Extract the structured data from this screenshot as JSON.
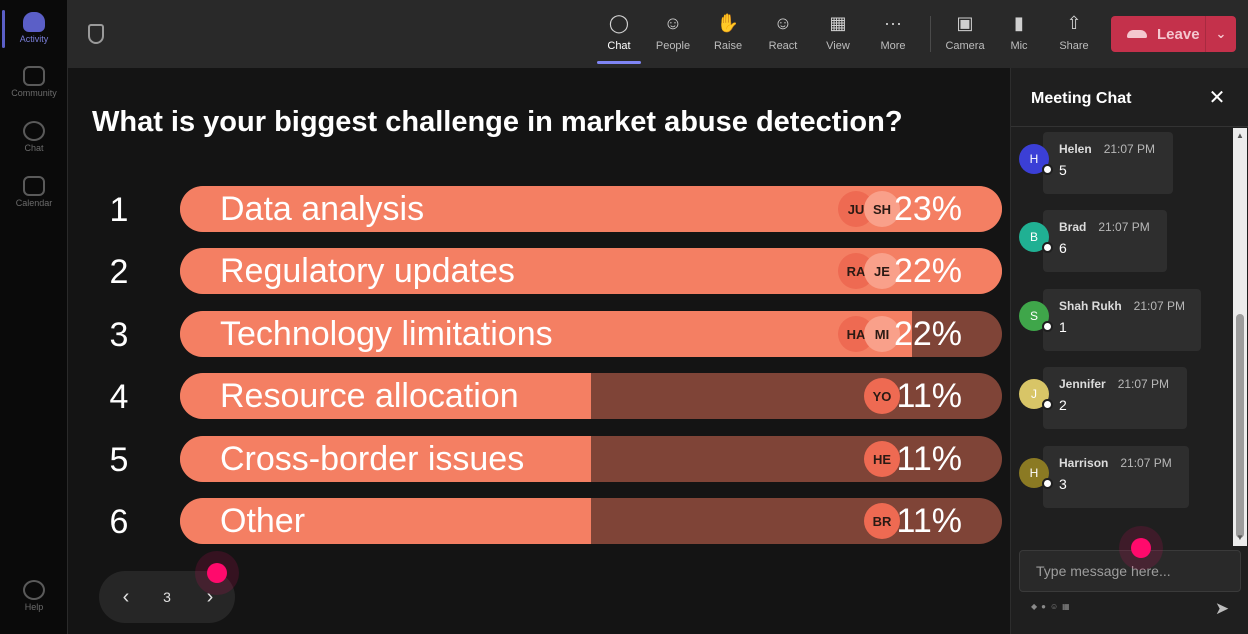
{
  "rail": {
    "items": [
      {
        "label": "Activity"
      },
      {
        "label": "Community"
      },
      {
        "label": "Chat"
      },
      {
        "label": "Calendar"
      },
      {
        "label": "Help"
      }
    ]
  },
  "toolbar": {
    "buttons": [
      {
        "label": "Chat",
        "icon": "chat-icon"
      },
      {
        "label": "People",
        "icon": "people-icon"
      },
      {
        "label": "Raise",
        "icon": "raise-hand-icon"
      },
      {
        "label": "React",
        "icon": "react-icon"
      },
      {
        "label": "View",
        "icon": "view-icon"
      },
      {
        "label": "More",
        "icon": "more-icon"
      },
      {
        "label": "Camera",
        "icon": "camera-off-icon"
      },
      {
        "label": "Mic",
        "icon": "mic-icon"
      },
      {
        "label": "Share",
        "icon": "share-icon"
      }
    ],
    "leave_label": "Leave"
  },
  "poll": {
    "question": "What is your biggest challenge in market abuse detection?",
    "options": [
      {
        "num": "1",
        "label": "Data analysis",
        "pct": "23%",
        "fill": 1.0,
        "avatars": [
          "JU",
          "SH"
        ]
      },
      {
        "num": "2",
        "label": "Regulatory updates",
        "pct": "22%",
        "fill": 1.0,
        "avatars": [
          "RA",
          "JE"
        ]
      },
      {
        "num": "3",
        "label": "Technology limitations",
        "pct": "22%",
        "fill": 0.89,
        "avatars": [
          "HA",
          "MI"
        ]
      },
      {
        "num": "4",
        "label": "Resource allocation",
        "pct": "11%",
        "fill": 0.5,
        "avatars": [
          "YO"
        ]
      },
      {
        "num": "5",
        "label": "Cross-border issues",
        "pct": "11%",
        "fill": 0.5,
        "avatars": [
          "HE"
        ]
      },
      {
        "num": "6",
        "label": "Other",
        "pct": "11%",
        "fill": 0.5,
        "avatars": [
          "BR"
        ]
      }
    ],
    "page": "3"
  },
  "chat": {
    "title": "Meeting Chat",
    "messages": [
      {
        "initial": "H",
        "name": "Helen",
        "time": "21:07 PM",
        "text": "5",
        "color": "#3b3fd6"
      },
      {
        "initial": "B",
        "name": "Brad",
        "time": "21:07 PM",
        "text": "6",
        "color": "#20b093"
      },
      {
        "initial": "S",
        "name": "Shah Rukh",
        "time": "21:07 PM",
        "text": "1",
        "color": "#3fa64a"
      },
      {
        "initial": "J",
        "name": "Jennifer",
        "time": "21:07 PM",
        "text": "2",
        "color": "#d8c567"
      },
      {
        "initial": "H",
        "name": "Harrison",
        "time": "21:07 PM",
        "text": "3",
        "color": "#8b7a23"
      }
    ],
    "input_placeholder": "Type message here..."
  },
  "colors": {
    "bar_fill": "#f47f63",
    "bar_track": "#7f4437",
    "leave": "#c4314b",
    "accent": "#5b5fc7",
    "pointer": "#ff0a6c"
  }
}
